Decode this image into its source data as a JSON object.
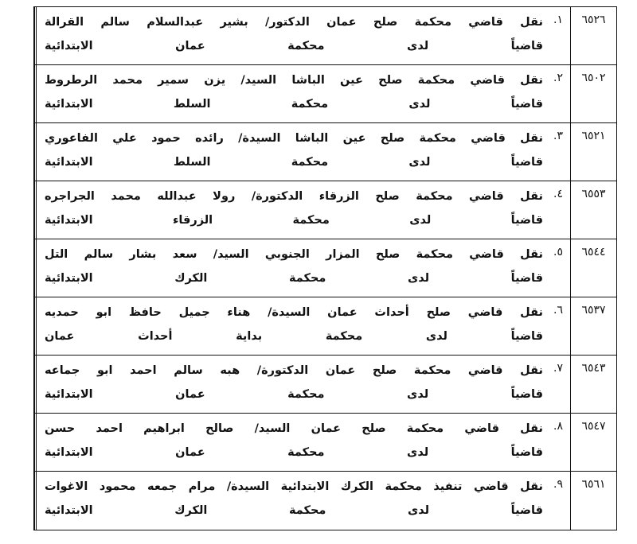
{
  "rows": [
    {
      "number": "٦٥٢٦",
      "index": "١.",
      "line1": "نقل قاضي محكمة صلح عمان الدكتور/ بشير عبدالسلام سالم القرالة",
      "line2": "قاضياً لدى محكمة عمان الابتدائية"
    },
    {
      "number": "٦٥٠٢",
      "index": "٢.",
      "line1": "نقل قاضي محكمة صلح عين الباشا السيد/ يزن سمير محمد الرطروط",
      "line2": "قاضياً لدى محكمة السلط الابتدائية"
    },
    {
      "number": "٦٥٢١",
      "index": "٣.",
      "line1": "نقل قاضي محكمة صلح عين الباشا السيدة/ رائده حمود علي الفاعوري",
      "line2": "قاضياً لدى محكمة السلط الابتدائية"
    },
    {
      "number": "٦٥٥٣",
      "index": "٤.",
      "line1": "نقل قاضي محكمة صلح الزرقاء الدكتورة/ رولا عبدالله محمد الجراجره",
      "line2": "قاضياً لدى محكمة الزرقاء الابتدائية"
    },
    {
      "number": "٦٥٤٤",
      "index": "٥.",
      "line1": "نقل قاضي محكمة صلح المزار الجنوبي السيد/ سعد بشار سالم التل",
      "line2": "قاضياً لدى محكمة الكرك الابتدائية"
    },
    {
      "number": "٦٥٣٧",
      "index": "٦.",
      "line1": "نقل قاضي صلح أحداث عمان السيدة/ هناء جميل حافظ ابو حمديه",
      "line2": "قاضياً لدى محكمة بداية أحداث عمان"
    },
    {
      "number": "٦٥٤٣",
      "index": "٧.",
      "line1": "نقل قاضي محكمة صلح عمان الدكتورة/ هبه سالم احمد ابو جماعه",
      "line2": "قاضياً لدى محكمة عمان الابتدائية"
    },
    {
      "number": "٦٥٤٧",
      "index": "٨.",
      "line1": "نقل قاضي محكمة صلح عمان السيد/ صالح ابراهيم احمد حسن",
      "line2": "قاضياً لدى محكمة عمان الابتدائية"
    },
    {
      "number": "٦٥٦١",
      "index": "٩.",
      "line1": "نقل قاضي تنفيذ محكمة الكرك الابتدائية السيدة/ مرام جمعه محمود الاغوات",
      "line2": "قاضياً لدى محكمة الكرك الابتدائية"
    }
  ]
}
